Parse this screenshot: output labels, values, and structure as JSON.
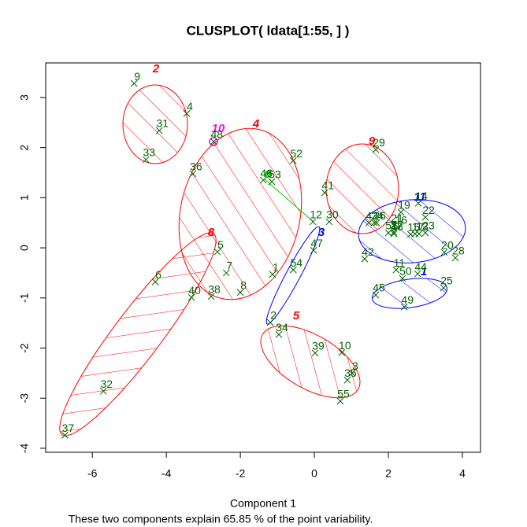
{
  "chart_data": {
    "type": "scatter",
    "title": "CLUSPLOT( ldata[1:55, ] )",
    "xlabel": "Component 1",
    "subtitle": "These two components explain 65.85 % of the point variability.",
    "xlim": [
      -7.26,
      4.49
    ],
    "ylim": [
      -4.08,
      3.69
    ],
    "xticks": [
      -6,
      -4,
      -2,
      0,
      2,
      4
    ],
    "yticks": [
      -4,
      -3,
      -2,
      -1,
      0,
      1,
      2,
      3
    ],
    "point_color": "#006400",
    "series": [
      {
        "name": "points",
        "labels": [
          "1",
          "2",
          "3",
          "4",
          "5",
          "6",
          "7",
          "8",
          "9",
          "10",
          "11",
          "12",
          "13",
          "14",
          "15",
          "16",
          "17",
          "18",
          "19",
          "20",
          "21",
          "22",
          "23",
          "24",
          "25",
          "26",
          "27",
          "28",
          "29",
          "30",
          "31",
          "32",
          "33",
          "34",
          "35",
          "36",
          "37",
          "38",
          "39",
          "40",
          "41",
          "42",
          "43",
          "44",
          "45",
          "46",
          "47",
          "48",
          "49",
          "50",
          "51",
          "52",
          "53",
          "54",
          "55"
        ],
        "x": [
          -1.13,
          -1.19,
          1.02,
          -3.45,
          -2.62,
          -4.3,
          -2.38,
          -2.0,
          -4.87,
          0.74,
          2.21,
          -0.04,
          2.83,
          2.81,
          2.6,
          2.26,
          2.72,
          2.15,
          2.34,
          3.51,
          2.15,
          3.0,
          3.0,
          1.62,
          3.49,
          1.68,
          2.15,
          3.81,
          1.66,
          0.4,
          -4.19,
          -5.7,
          -4.55,
          -0.96,
          0.89,
          -3.28,
          -6.74,
          -2.79,
          0.02,
          -3.32,
          0.28,
          1.36,
          1.47,
          2.79,
          1.66,
          -1.38,
          -0.02,
          -2.72,
          2.43,
          2.38,
          2.0,
          -0.57,
          -1.15,
          -0.57,
          0.7
        ],
        "y": [
          -0.53,
          -1.49,
          -2.5,
          2.68,
          -0.08,
          -0.68,
          -0.5,
          -0.89,
          3.28,
          -2.09,
          -0.44,
          0.52,
          0.28,
          0.89,
          0.27,
          0.41,
          0.28,
          0.28,
          0.71,
          -0.09,
          0.45,
          0.61,
          0.3,
          0.5,
          -0.8,
          0.5,
          0.31,
          -0.2,
          1.96,
          0.52,
          2.34,
          -2.86,
          1.76,
          -1.73,
          -2.64,
          1.48,
          -3.74,
          -0.97,
          -2.1,
          -0.99,
          1.1,
          -0.22,
          0.5,
          -0.52,
          -0.94,
          1.35,
          -0.05,
          2.12,
          -1.18,
          -0.61,
          0.3,
          1.74,
          1.32,
          -0.44,
          -3.06
        ]
      }
    ],
    "clusters": [
      {
        "name": "1",
        "color": "#0000ff"
      },
      {
        "name": "2",
        "color": "#ff0000"
      },
      {
        "name": "3",
        "color": "#0000ff"
      },
      {
        "name": "4",
        "color": "#ff0000"
      },
      {
        "name": "5",
        "color": "#ff0000"
      },
      {
        "name": "6",
        "color": "#00cc00"
      },
      {
        "name": "8",
        "color": "#ff0000"
      },
      {
        "name": "9",
        "color": "#ff0000"
      },
      {
        "name": "10",
        "color": "#ff00ff"
      },
      {
        "name": "11",
        "color": "#0000ff"
      }
    ]
  }
}
